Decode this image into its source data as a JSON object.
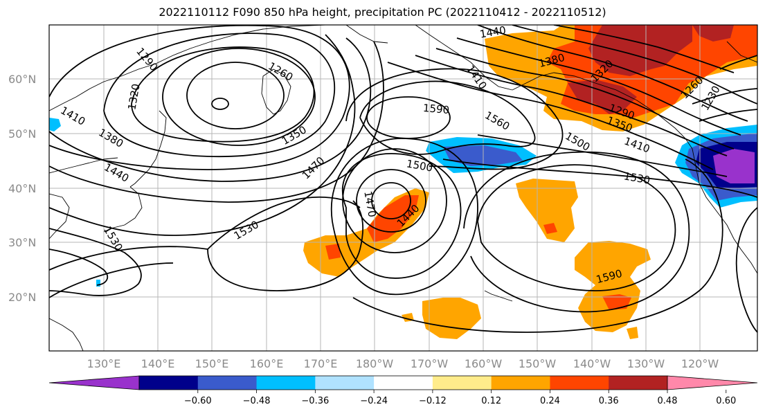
{
  "title": "2022110112 F090 850 hPa height, precipitation PC (2022110412 - 2022110512)",
  "lat_labels": [
    "60°N",
    "50°N",
    "40°N",
    "30°N",
    "20°N"
  ],
  "lon_labels": [
    "130°E",
    "140°E",
    "150°E",
    "160°E",
    "170°E",
    "180°W",
    "170°W",
    "160°W",
    "150°W",
    "140°W",
    "130°W",
    "120°W"
  ],
  "contour_labels": [
    "1290",
    "1320",
    "1260",
    "1410",
    "1380",
    "1440",
    "1350",
    "1470",
    "1440",
    "1410",
    "1380",
    "1320",
    "1590",
    "1560",
    "1500",
    "1500",
    "1470",
    "1440",
    "1530",
    "1290",
    "1350",
    "1410",
    "1260",
    "1230",
    "1530",
    "1590",
    "1530"
  ],
  "colorbar": {
    "ticks": [
      "−0.60",
      "−0.48",
      "−0.36",
      "−0.24",
      "−0.12",
      "0.12",
      "0.24",
      "0.36",
      "0.48",
      "0.60"
    ],
    "colors": [
      "#9932cc",
      "#00008b",
      "#3a5bcc",
      "#00bfff",
      "#b0e2ff",
      "#ffffff",
      "#ffec8b",
      "#ffa500",
      "#ff4500",
      "#b22222",
      "#ff88aa"
    ]
  }
}
